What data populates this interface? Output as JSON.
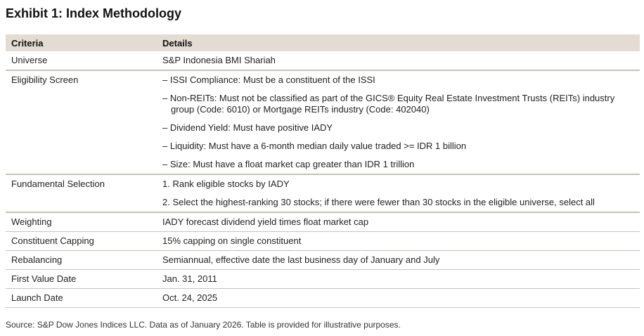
{
  "title": "Exhibit 1: Index Methodology",
  "table": {
    "headers": [
      "Criteria",
      "Details"
    ],
    "rows": [
      {
        "criteria": "Universe",
        "details": [
          "S&P Indonesia BMI Shariah"
        ]
      },
      {
        "criteria": "Eligibility Screen",
        "details": [
          "– ISSI Compliance: Must be a constituent of the ISSI",
          "– Non-REITs: Must not be classified as part of the GICS® Equity Real Estate Investment Trusts (REITs) industry group (Code: 6010) or Mortgage REITs industry (Code: 402040)",
          "– Dividend Yield: Must have positive IADY",
          "– Liquidity: Must have a 6-month median daily value traded >= IDR 1 billion",
          "– Size: Must have a float market cap greater than IDR 1 trillion"
        ]
      },
      {
        "criteria": "Fundamental Selection",
        "details": [
          "1.  Rank eligible stocks by IADY",
          "2.  Select the highest-ranking 30 stocks; if there were fewer than 30 stocks in the eligible universe, select all"
        ]
      },
      {
        "criteria": "Weighting",
        "details": [
          "IADY forecast dividend yield times float market cap"
        ]
      },
      {
        "criteria": "Constituent Capping",
        "details": [
          "15% capping on single constituent"
        ]
      },
      {
        "criteria": "Rebalancing",
        "details": [
          "Semiannual, effective date the last business day of January and July"
        ]
      },
      {
        "criteria": "First Value Date",
        "details": [
          "Jan. 31, 2011"
        ]
      },
      {
        "criteria": "Launch Date",
        "details": [
          "Oct. 24, 2025"
        ]
      }
    ]
  },
  "source": "Source: S&P Dow Jones Indices LLC. Data as of January 2026. Table is provided for illustrative purposes."
}
